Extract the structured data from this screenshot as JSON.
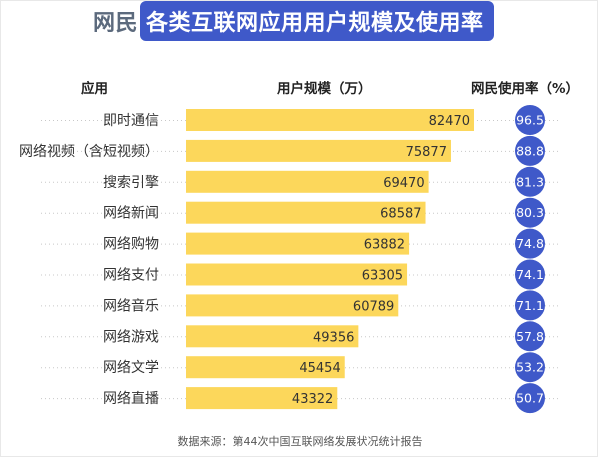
{
  "title": {
    "plain": "网民",
    "highlight": "各类互联网应用用户规模及使用率"
  },
  "headers": {
    "app": "应用",
    "users": "用户规模（万）",
    "rate": "网民使用率（%）"
  },
  "source": "数据来源：第44次中国互联网络发展状况统计报告",
  "colors": {
    "bar": "#fcd75b",
    "circle": "#3f59c9",
    "title_highlight": "#3f59c9",
    "dots": "#c8c8c8"
  },
  "chart_data": {
    "type": "bar",
    "orientation": "horizontal",
    "categories": [
      "即时通信",
      "网络视频（含短视频）",
      "搜索引擎",
      "网络新闻",
      "网络购物",
      "网络支付",
      "网络音乐",
      "网络游戏",
      "网络文学",
      "网络直播"
    ],
    "series": [
      {
        "name": "用户规模（万）",
        "values": [
          82470,
          75877,
          69470,
          68587,
          63882,
          63305,
          60789,
          49356,
          45454,
          43322
        ]
      },
      {
        "name": "网民使用率（%）",
        "values": [
          96.5,
          88.8,
          81.3,
          80.3,
          74.8,
          74.1,
          71.1,
          57.8,
          53.2,
          50.7
        ]
      }
    ],
    "value_labels": [
      "82470",
      "75877",
      "69470",
      "68587",
      "63882",
      "63305",
      "60789",
      "49356",
      "45454",
      "43322"
    ],
    "rate_labels": [
      "96.5",
      "88.8",
      "81.3",
      "80.3",
      "74.8",
      "74.1",
      "71.1",
      "57.8",
      "53.2",
      "50.7"
    ],
    "xlim": [
      0,
      82470
    ]
  }
}
